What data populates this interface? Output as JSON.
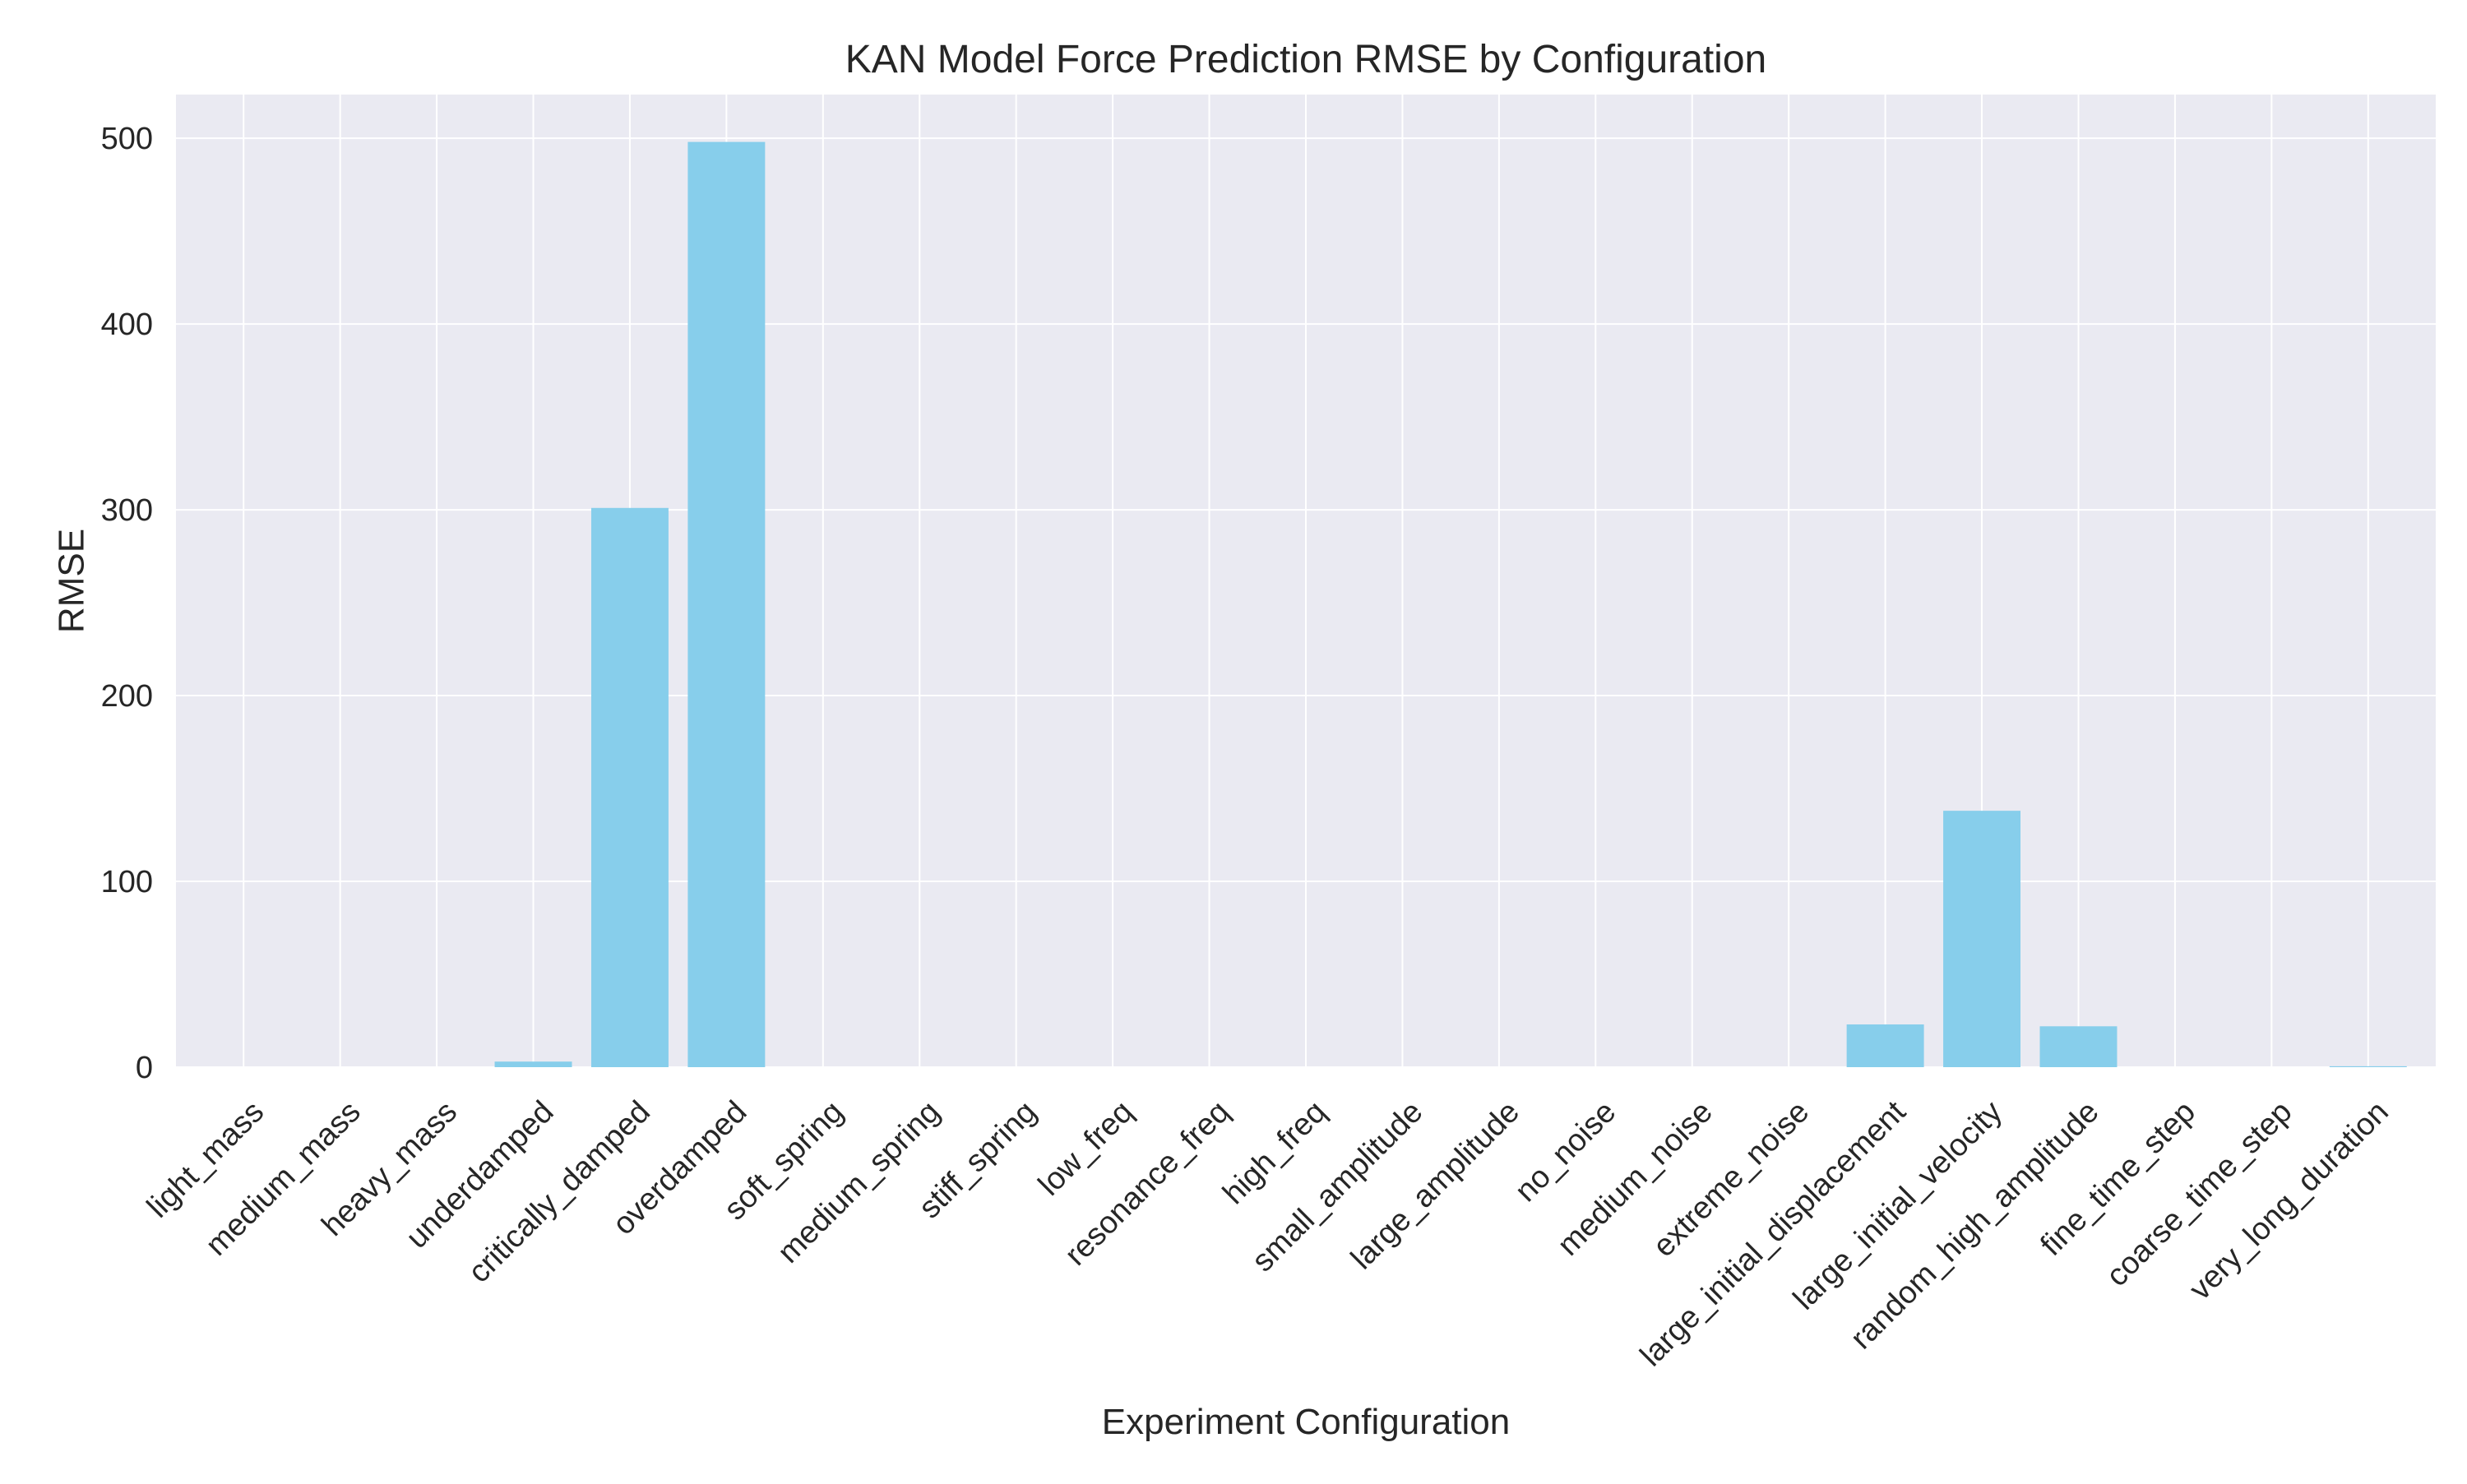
{
  "chart_data": {
    "type": "bar",
    "title": "KAN Model Force Prediction RMSE by Configuration",
    "xlabel": "Experiment Configuration",
    "ylabel": "RMSE",
    "categories": [
      "light_mass",
      "medium_mass",
      "heavy_mass",
      "underdamped",
      "critically_damped",
      "overdamped",
      "soft_spring",
      "medium_spring",
      "stiff_spring",
      "low_freq",
      "resonance_freq",
      "high_freq",
      "small_amplitude",
      "large_amplitude",
      "no_noise",
      "medium_noise",
      "extreme_noise",
      "large_initial_displacement",
      "large_initial_velocity",
      "random_high_amplitude",
      "fine_time_step",
      "coarse_time_step",
      "very_long_duration"
    ],
    "values": [
      0,
      0,
      0,
      3,
      301,
      498,
      0,
      0,
      0,
      0,
      0,
      0,
      0,
      0,
      0,
      0,
      0,
      23,
      138,
      22,
      0,
      0,
      0.5
    ],
    "yticks": [
      0,
      100,
      200,
      300,
      400,
      500
    ],
    "ylim": [
      0,
      523.5
    ],
    "grid": true,
    "bar_color": "#87CEEB",
    "plot_background": "#EAEAF2",
    "grid_color": "#FFFFFF"
  }
}
